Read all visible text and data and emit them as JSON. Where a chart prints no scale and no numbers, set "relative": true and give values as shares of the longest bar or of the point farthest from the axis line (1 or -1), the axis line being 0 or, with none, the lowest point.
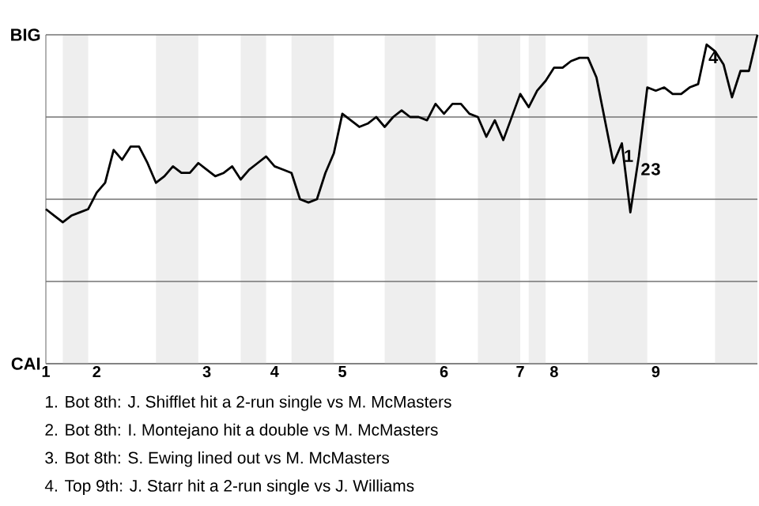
{
  "chart_data": {
    "type": "line",
    "relative": true,
    "categories": [
      "1",
      null,
      null,
      null,
      null,
      null,
      "2",
      null,
      null,
      null,
      null,
      null,
      null,
      null,
      null,
      null,
      null,
      null,
      null,
      "3",
      null,
      null,
      null,
      null,
      null,
      null,
      null,
      "4",
      null,
      null,
      null,
      null,
      null,
      null,
      null,
      "5",
      null,
      null,
      null,
      null,
      null,
      null,
      null,
      null,
      null,
      null,
      null,
      "6",
      null,
      null,
      null,
      null,
      null,
      null,
      null,
      null,
      "7",
      null,
      null,
      null,
      "8",
      null,
      null,
      null,
      null,
      null,
      null,
      null,
      null,
      null,
      null,
      null,
      "9",
      null,
      null,
      null,
      null,
      null,
      null,
      null,
      null,
      null,
      null,
      null,
      null
    ],
    "grid": "y",
    "series": [
      {
        "color": "#000000",
        "values": [
          0.47,
          0.45,
          0.43,
          0.45,
          0.46,
          0.47,
          0.52,
          0.55,
          0.65,
          0.62,
          0.66,
          0.66,
          0.61,
          0.55,
          0.57,
          0.6,
          0.58,
          0.58,
          0.61,
          0.59,
          0.57,
          0.58,
          0.6,
          0.56,
          0.59,
          0.61,
          0.63,
          0.6,
          0.59,
          0.58,
          0.5,
          0.49,
          0.5,
          0.58,
          0.64,
          0.76,
          0.74,
          0.72,
          0.73,
          0.75,
          0.72,
          0.75,
          0.77,
          0.75,
          0.75,
          0.74,
          0.79,
          0.76,
          0.79,
          0.79,
          0.76,
          0.75,
          0.69,
          0.74,
          0.68,
          0.75,
          0.82,
          0.78,
          0.83,
          0.86,
          0.9,
          0.9,
          0.92,
          0.93,
          0.93,
          0.87,
          0.74,
          0.61,
          0.67,
          0.46,
          0.63,
          0.84,
          0.83,
          0.84,
          0.82,
          0.82,
          0.84,
          0.85,
          0.97,
          0.95,
          0.91,
          0.81,
          0.89,
          0.89,
          1
        ]
      }
    ],
    "annotations": [
      "BIG",
      "CAI",
      {
        "text": "1",
        "y": 0.67
      },
      {
        "text": "2",
        "y": 0.63
      },
      "3",
      {
        "text": "4",
        "y": 0.97
      },
      "1. Bot 8th: J. Shifflet hit a 2-run single vs M. McMasters",
      "2. Bot 8th: I. Montejano hit a double vs M. McMasters",
      "3. Bot 8th: S. Ewing lined out vs M. McMasters",
      "4. Top 9th: J. Starr hit a 2-run single vs J. Williams"
    ]
  }
}
